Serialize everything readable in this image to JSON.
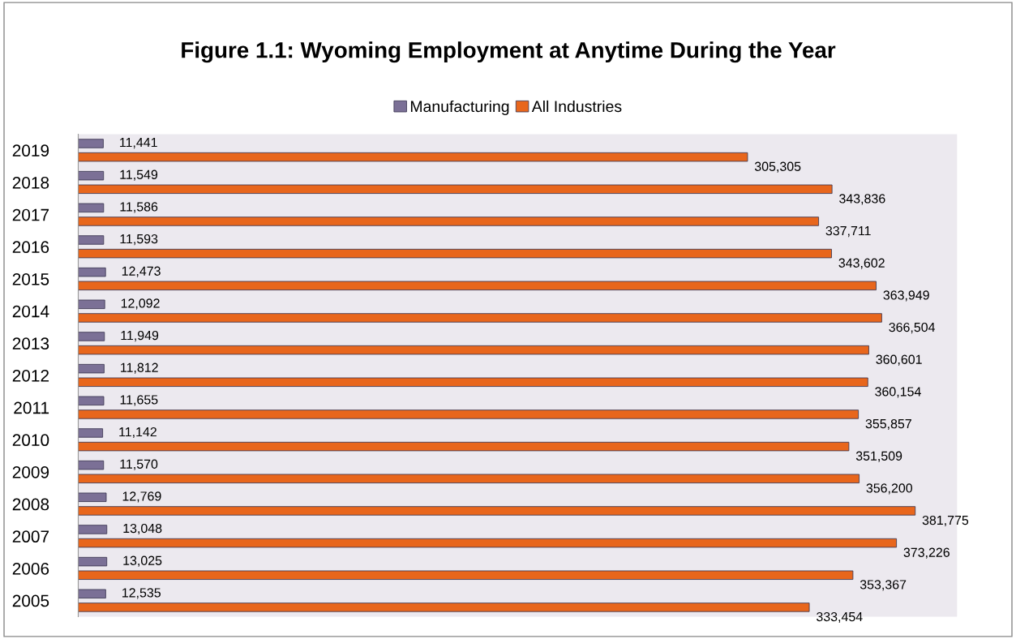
{
  "chart_data": {
    "type": "bar",
    "orientation": "horizontal",
    "title": "Figure 1.1: Wyoming Employment at Anytime During the Year",
    "categories": [
      "2019",
      "2018",
      "2017",
      "2016",
      "2015",
      "2014",
      "2013",
      "2012",
      "2011",
      "2010",
      "2009",
      "2008",
      "2007",
      "2006",
      "2005"
    ],
    "series": [
      {
        "name": "Manufacturing",
        "color": "#7b7096",
        "values": [
          11441,
          11549,
          11586,
          11593,
          12473,
          12092,
          11949,
          11812,
          11655,
          11142,
          11570,
          12769,
          13048,
          13025,
          12535
        ],
        "value_labels": [
          "11,441",
          "11,549",
          "11,586",
          "11,593",
          "12,473",
          "12,092",
          "11,949",
          "11,812",
          "11,655",
          "11,142",
          "11,570",
          "12,769",
          "13,048",
          "13,025",
          "12,535"
        ]
      },
      {
        "name": "All Industries",
        "color": "#e8661c",
        "values": [
          305305,
          343836,
          337711,
          343602,
          363949,
          366504,
          360601,
          360154,
          355857,
          351509,
          356200,
          381775,
          373226,
          353367,
          333454
        ],
        "value_labels": [
          "305,305",
          "343,836",
          "337,711",
          "343,602",
          "363,949",
          "366,504",
          "360,601",
          "360,154",
          "355,857",
          "351,509",
          "356,200",
          "381,775",
          "373,226",
          "353,367",
          "333,454"
        ]
      }
    ],
    "legend": "top",
    "tick_labels": "y",
    "grid": false
  }
}
